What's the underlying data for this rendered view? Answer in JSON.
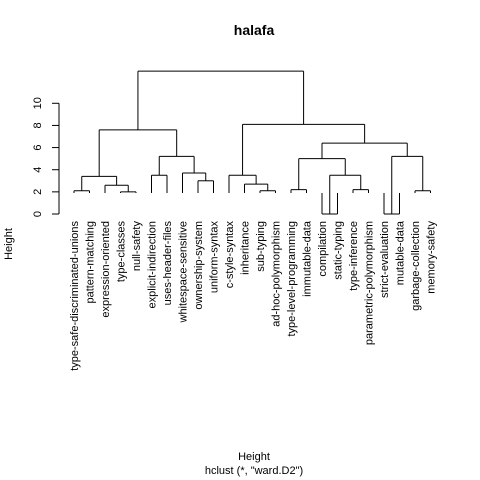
{
  "chart_data": {
    "type": "dendrogram",
    "title": "halafa",
    "xlabel": "Height",
    "ylabel": "Height",
    "sub": "hclust (*, \"ward.D2\")",
    "ylim": [
      0,
      14
    ],
    "yticks": [
      0,
      2,
      4,
      6,
      8,
      10
    ],
    "colors": {
      "line": "#000000",
      "background": "#ffffff"
    },
    "leaves": [
      "type-safe-discriminated-unions",
      "pattern-matching",
      "expression-oriented",
      "type-classes",
      "null-safety",
      "explicit-indirection",
      "uses-header-files",
      "whitespace-sensitive",
      "ownership-system",
      "uniform-syntax",
      "c-style-syntax",
      "inheritance",
      "sub-typing",
      "ad-hoc-polymorphism",
      "type-level-programming",
      "immutable-data",
      "compilation",
      "static-typing",
      "type-inference",
      "parametric-polymorphism",
      "strict-evaluation",
      "mutable-data",
      "garbage-collection",
      "memory-safety"
    ],
    "merges": [
      {
        "id": "m1",
        "a": "L0",
        "b": "L1",
        "height": 2.1
      },
      {
        "id": "m2",
        "a": "L3",
        "b": "L4",
        "height": 2.0
      },
      {
        "id": "m3",
        "a": "L2",
        "b": "m2",
        "height": 2.6
      },
      {
        "id": "m4",
        "a": "m1",
        "b": "m3",
        "height": 3.4
      },
      {
        "id": "m5",
        "a": "L5",
        "b": "L6",
        "height": 3.5
      },
      {
        "id": "m6",
        "a": "L8",
        "b": "L9",
        "height": 3.0
      },
      {
        "id": "m7",
        "a": "L7",
        "b": "m6",
        "height": 3.7
      },
      {
        "id": "m8",
        "a": "m5",
        "b": "m7",
        "height": 5.2
      },
      {
        "id": "m9",
        "a": "m4",
        "b": "m8",
        "height": 7.6
      },
      {
        "id": "m10",
        "a": "L12",
        "b": "L13",
        "height": 2.1
      },
      {
        "id": "m11",
        "a": "L11",
        "b": "m10",
        "height": 2.7
      },
      {
        "id": "m12",
        "a": "L10",
        "b": "m11",
        "height": 3.5
      },
      {
        "id": "m13",
        "a": "L14",
        "b": "L15",
        "height": 2.2
      },
      {
        "id": "m14",
        "a": "L16",
        "b": "L17",
        "height": 0.0
      },
      {
        "id": "m15",
        "a": "L18",
        "b": "L19",
        "height": 2.2
      },
      {
        "id": "m16",
        "a": "m14",
        "b": "m15",
        "height": 3.5
      },
      {
        "id": "m17",
        "a": "m13",
        "b": "m16",
        "height": 5.0
      },
      {
        "id": "m18",
        "a": "L20",
        "b": "L21",
        "height": 0.0
      },
      {
        "id": "m19",
        "a": "L22",
        "b": "L23",
        "height": 2.1
      },
      {
        "id": "m20",
        "a": "m18",
        "b": "m19",
        "height": 5.2
      },
      {
        "id": "m21",
        "a": "m17",
        "b": "m20",
        "height": 6.4
      },
      {
        "id": "m22",
        "a": "m12",
        "b": "m21",
        "height": 8.1
      },
      {
        "id": "m23",
        "a": "m9",
        "b": "m22",
        "height": 12.9
      }
    ]
  }
}
